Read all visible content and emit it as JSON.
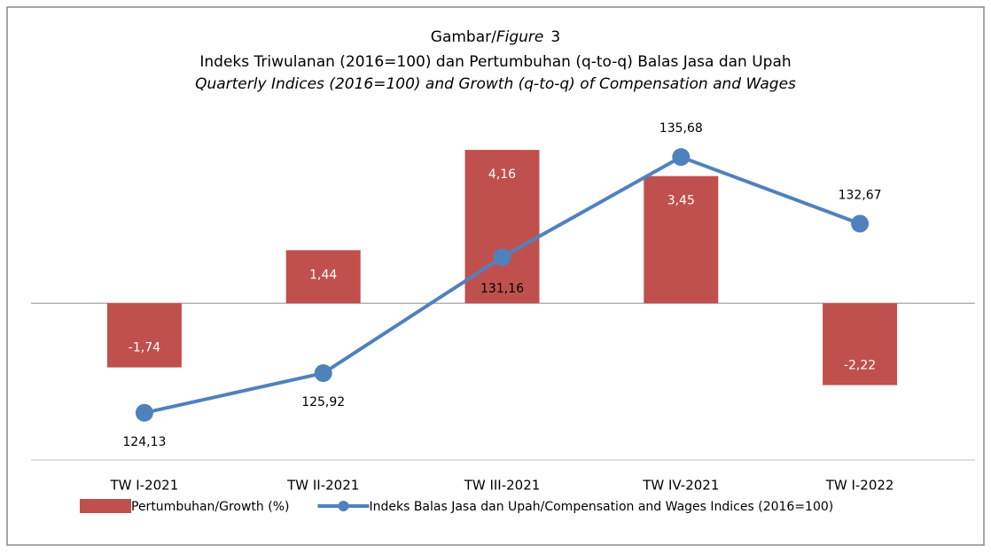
{
  "figure_label": {
    "id": "Gambar/",
    "en": "Figure",
    "number": "3"
  },
  "chart_data": {
    "type": "bar_line",
    "title": "Indeks Triwulanan (2016=100) dan Pertumbuhan (q-to-q) Balas Jasa dan Upah",
    "subtitle": "Quarterly Indices (2016=100) and Growth (q-to-q) of Compensation and Wages",
    "categories": [
      "TW I-2021",
      "TW II-2021",
      "TW III-2021",
      "TW IV-2021",
      "TW I-2022"
    ],
    "series": [
      {
        "name": "Pertumbuhan/Growth (%)",
        "type": "bar",
        "color": "#c0504d",
        "axis": "y",
        "values": [
          -1.74,
          1.44,
          4.16,
          3.45,
          -2.22
        ],
        "value_labels": [
          "-1,74",
          "1,44",
          "4,16",
          "3,45",
          "-2,22"
        ]
      },
      {
        "name": "Indeks Balas Jasa dan Upah/Compensation and Wages Indices (2016=100)",
        "type": "line",
        "color": "#4f81bd",
        "axis": "y2",
        "values": [
          124.13,
          125.92,
          131.16,
          135.68,
          132.67
        ],
        "value_labels": [
          "124,13",
          "125,92",
          "131,16",
          "135,68",
          "132,67"
        ]
      }
    ],
    "ylim": [
      -4.25,
      5
    ],
    "y2lim": [
      122,
      137.4
    ],
    "legend": "bottom"
  }
}
